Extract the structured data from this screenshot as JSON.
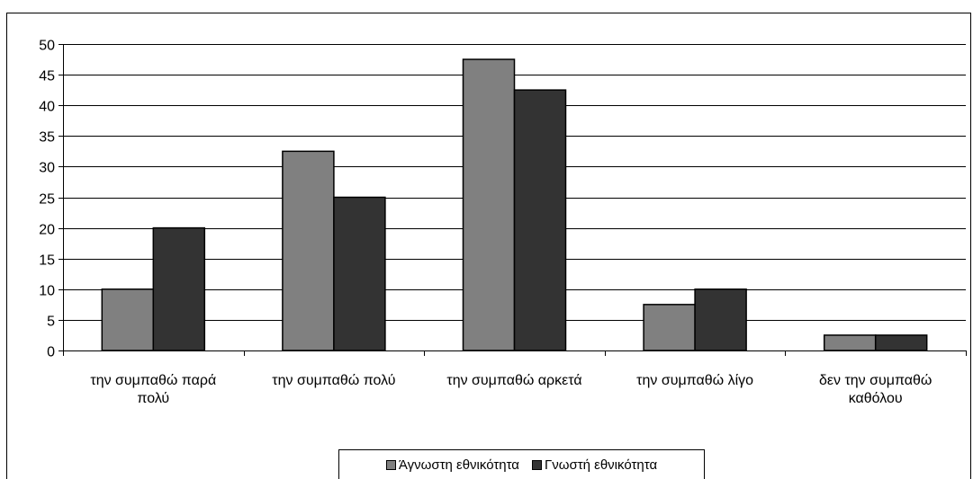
{
  "chart_data": {
    "type": "bar",
    "categories": [
      [
        "την συμπαθώ παρά",
        "πολύ"
      ],
      [
        "την συμπαθώ πολύ"
      ],
      [
        "την συμπαθώ αρκετά"
      ],
      [
        "την συμπαθώ λίγο"
      ],
      [
        "δεν την συμπαθώ",
        "καθόλου"
      ]
    ],
    "series": [
      {
        "name": "Άγνωστη εθνικότητα",
        "values": [
          10,
          32.5,
          47.5,
          7.5,
          2.5
        ],
        "color": "#808080"
      },
      {
        "name": "Γνωστή εθνικότητα",
        "values": [
          20,
          25,
          42.5,
          10,
          2.5
        ],
        "color": "#333333"
      }
    ],
    "ylim": [
      0,
      50
    ],
    "yticks": [
      0,
      5,
      10,
      15,
      20,
      25,
      30,
      35,
      40,
      45,
      50
    ],
    "grid": true,
    "legend_position": "bottom"
  }
}
